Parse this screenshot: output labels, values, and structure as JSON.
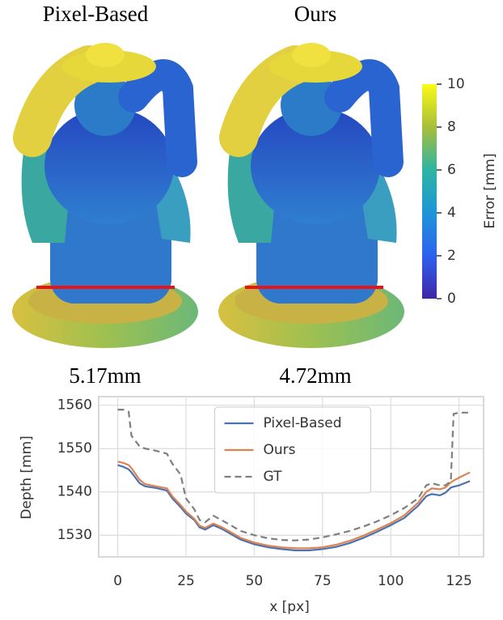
{
  "panels": [
    {
      "title": "Pixel-Based",
      "error": "5.17mm"
    },
    {
      "title": "Ours",
      "error": "4.72mm"
    }
  ],
  "colorbar": {
    "label": "Error [mm]",
    "lim": [
      0,
      10
    ],
    "ticks": [
      0,
      2,
      4,
      6,
      8,
      10
    ]
  },
  "chart_data": {
    "type": "line",
    "xlabel": "x [px]",
    "ylabel": "Depth [mm]",
    "x": [
      0,
      2,
      4,
      5,
      8,
      10,
      14,
      18,
      20,
      23,
      25,
      28,
      30,
      32,
      35,
      38,
      40,
      45,
      50,
      55,
      60,
      65,
      70,
      75,
      80,
      85,
      90,
      95,
      100,
      105,
      110,
      113,
      115,
      118,
      120,
      122,
      123,
      125,
      129
    ],
    "xlim": [
      -7,
      134
    ],
    "xticks": [
      0,
      25,
      50,
      75,
      100,
      125
    ],
    "ylim": [
      1525,
      1562
    ],
    "yticks": [
      1530,
      1540,
      1550,
      1560
    ],
    "grid": true,
    "legend": "upper center",
    "series": [
      {
        "name": "Pixel-Based",
        "color": "#4c72b0",
        "dashed": false,
        "values": [
          1546.2,
          1545.8,
          1545.2,
          1544.5,
          1542,
          1541.3,
          1540.9,
          1540.3,
          1538.5,
          1536.5,
          1535,
          1533.5,
          1531.8,
          1531.3,
          1532.3,
          1531.5,
          1530.8,
          1529,
          1527.9,
          1527.2,
          1526.8,
          1526.5,
          1526.5,
          1526.8,
          1527.3,
          1528.2,
          1529.4,
          1530.8,
          1532.3,
          1534,
          1536.8,
          1539,
          1539.5,
          1539.2,
          1539.8,
          1541,
          1541.2,
          1541.5,
          1542.5
        ]
      },
      {
        "name": "Ours",
        "color": "#dd8452",
        "dashed": false,
        "values": [
          1547,
          1546.7,
          1546.2,
          1545.5,
          1542.8,
          1541.8,
          1541.3,
          1540.8,
          1539,
          1537,
          1535.5,
          1533.8,
          1532.2,
          1531.7,
          1532.7,
          1531.9,
          1531.2,
          1529.4,
          1528.3,
          1527.6,
          1527.2,
          1527,
          1527,
          1527.2,
          1527.8,
          1528.7,
          1529.9,
          1531.3,
          1532.8,
          1534.6,
          1537.5,
          1540,
          1540.8,
          1540.6,
          1541,
          1542.2,
          1542.6,
          1543.3,
          1544.5
        ]
      },
      {
        "name": "GT",
        "color": "#7f7f7f",
        "dashed": true,
        "values": [
          1559,
          1559,
          1558.5,
          1553,
          1550.5,
          1550,
          1549.5,
          1548.8,
          1546.5,
          1544,
          1538.5,
          1536,
          1533.5,
          1533,
          1534.5,
          1533.5,
          1532.8,
          1531,
          1530,
          1529.3,
          1528.9,
          1528.8,
          1529,
          1529.5,
          1530.2,
          1531,
          1532,
          1533.2,
          1534.6,
          1536.3,
          1538.5,
          1541.5,
          1542,
          1541.5,
          1541.5,
          1542.5,
          1558,
          1558.3,
          1558.3
        ]
      }
    ]
  }
}
